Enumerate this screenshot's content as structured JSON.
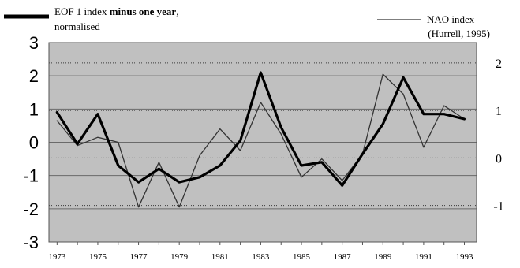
{
  "chart_data": {
    "type": "line",
    "x": [
      1973,
      1974,
      1975,
      1976,
      1977,
      1978,
      1979,
      1980,
      1981,
      1982,
      1983,
      1984,
      1985,
      1986,
      1987,
      1988,
      1989,
      1990,
      1991,
      1992,
      1993
    ],
    "x_ticks": [
      "1973",
      "1975",
      "1977",
      "1979",
      "1981",
      "1983",
      "1985",
      "1987",
      "1989",
      "1991",
      "1993"
    ],
    "xlim": [
      1972.6,
      1993.6
    ],
    "left_axis": {
      "ylim": [
        -3,
        3
      ],
      "ticks": [
        "3",
        "2",
        "1",
        "0",
        "-1",
        "-2",
        "-3"
      ]
    },
    "right_axis": {
      "ylim": [
        -1.6,
        2.6
      ],
      "ticks": [
        "2",
        "1",
        "0",
        "-1"
      ],
      "grid_values": [
        2.17,
        1.17,
        0.17,
        -0.83
      ]
    },
    "grid": true,
    "plot_background": "#c0c0c0",
    "series": [
      {
        "name_plain": "EOF 1 index ",
        "name_bold": "minus one year",
        "name_tail": ",",
        "name_line2": "normalised",
        "axis": "left",
        "color": "#000000",
        "line_weight": "thick",
        "values": [
          0.9,
          -0.05,
          0.85,
          -0.7,
          -1.2,
          -0.8,
          -1.2,
          -1.05,
          -0.7,
          0.05,
          2.1,
          0.45,
          -0.7,
          -0.6,
          -1.3,
          -0.35,
          0.55,
          1.95,
          0.85,
          0.85,
          0.7
        ]
      },
      {
        "name": "NAO index",
        "name_line2": "(Hurrell, 1995)",
        "axis": "left",
        "color": "#333333",
        "line_weight": "thin",
        "values": [
          0.65,
          -0.1,
          0.15,
          0.0,
          -1.95,
          -0.6,
          -1.95,
          -0.4,
          0.4,
          -0.25,
          1.2,
          0.25,
          -1.05,
          -0.5,
          -1.15,
          -0.35,
          2.05,
          1.45,
          -0.15,
          1.1,
          0.7
        ]
      }
    ]
  }
}
